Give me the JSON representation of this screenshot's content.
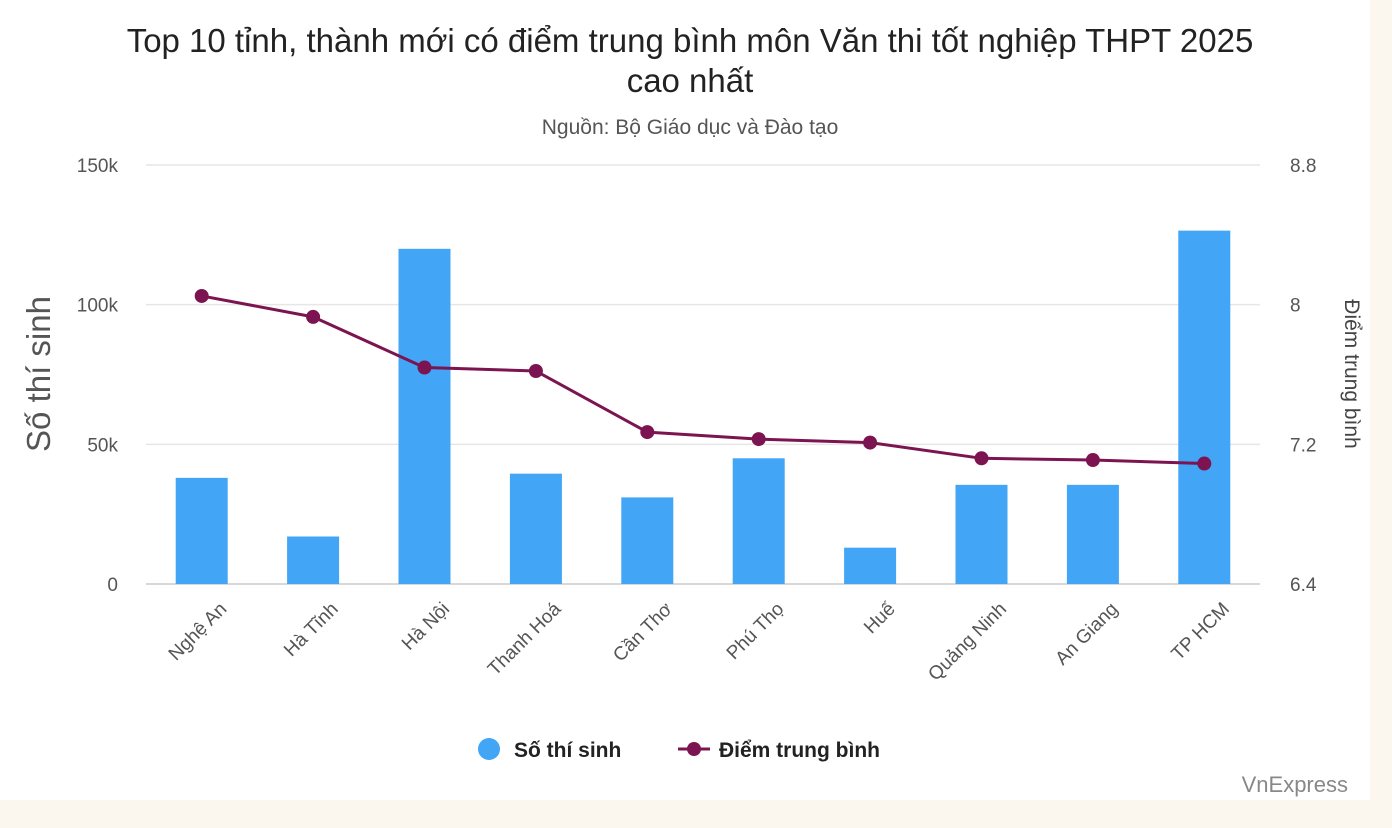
{
  "chart_data": {
    "type": "bar",
    "title_line1": "Top 10 tỉnh, thành mới có điểm trung bình môn Văn thi tốt nghiệp THPT 2025",
    "title_line2": "cao nhất",
    "subtitle": "Nguồn: Bộ Giáo dục và Đào tạo",
    "categories": [
      "Nghệ An",
      "Hà Tĩnh",
      "Hà Nội",
      "Thanh Hoá",
      "Cần Thơ",
      "Phú Thọ",
      "Huế",
      "Quảng Ninh",
      "An Giang",
      "TP HCM"
    ],
    "y_left": {
      "label": "Số thí sinh",
      "ylim": [
        0,
        150000
      ],
      "ticks": [
        "0",
        "50k",
        "100k",
        "150k"
      ]
    },
    "y_right": {
      "label": "Điểm trung bình",
      "ylim": [
        6.4,
        8.8
      ],
      "ticks": [
        "6.4",
        "7.2",
        "8",
        "8.8"
      ]
    },
    "series": [
      {
        "name": "Số thí sinh",
        "type": "bar",
        "axis": "left",
        "color": "#42a5f5",
        "values": [
          38000,
          17000,
          120000,
          39500,
          31000,
          45000,
          13000,
          35500,
          35500,
          126500
        ]
      },
      {
        "name": "Điểm trung bình",
        "type": "line",
        "axis": "right",
        "color": "#7b1450",
        "values": [
          8.05,
          7.93,
          7.64,
          7.62,
          7.27,
          7.23,
          7.21,
          7.12,
          7.11,
          7.09
        ]
      }
    ],
    "grid": true,
    "legend_position": "bottom-center"
  },
  "credit": "VnExpress"
}
